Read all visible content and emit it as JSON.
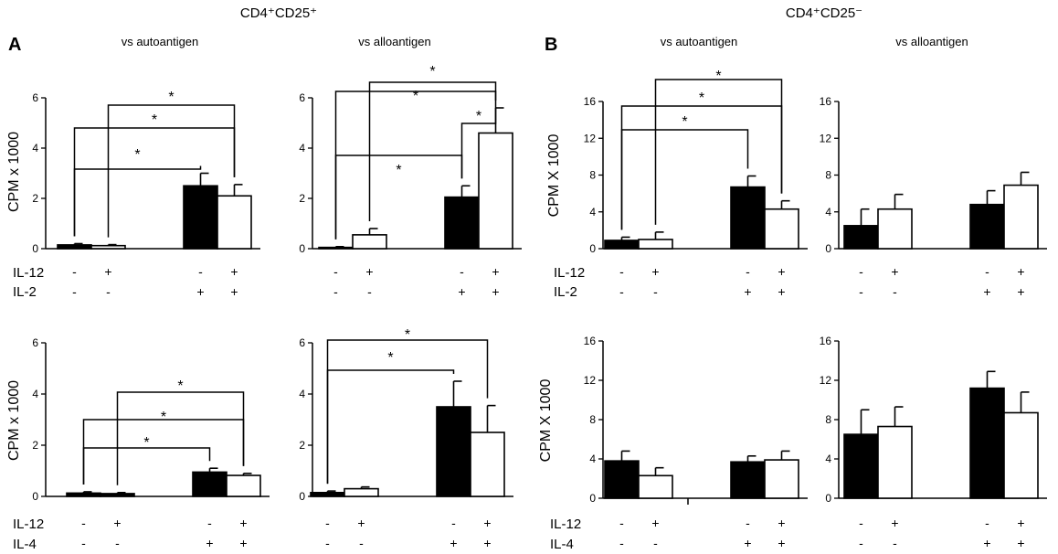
{
  "headers": {
    "left": "CD4⁺CD25⁺",
    "right": "CD4⁺CD25⁻"
  },
  "panel_letters": {
    "a": "A",
    "b": "B"
  },
  "colors": {
    "filled": "#000000",
    "open": "#ffffff",
    "axis": "#000000"
  },
  "chart_data": [
    {
      "id": "a-auto-il2",
      "type": "bar",
      "title": "vs autoantigen",
      "ylabel": "CPM x 1000",
      "ylim": [
        0,
        6
      ],
      "yticks": [
        0,
        2,
        4,
        6
      ],
      "row_labels": [
        "IL-12",
        "IL-2"
      ],
      "groups": [
        {
          "bars": [
            {
              "fill": "filled",
              "value": 0.15,
              "error": 0.05,
              "signs": [
                "-",
                "-"
              ]
            },
            {
              "fill": "open",
              "value": 0.12,
              "error": 0.04,
              "signs": [
                "+",
                "-"
              ]
            }
          ]
        },
        {
          "bars": [
            {
              "fill": "filled",
              "value": 2.5,
              "error": 0.5,
              "signs": [
                "-",
                "+"
              ]
            },
            {
              "fill": "open",
              "value": 2.1,
              "error": 0.45,
              "signs": [
                "+",
                "+"
              ]
            }
          ]
        }
      ],
      "significance": [
        {
          "from": [
            0,
            0
          ],
          "to": [
            1,
            0
          ],
          "label": "*"
        },
        {
          "from": [
            0,
            0
          ],
          "to": [
            1,
            1
          ],
          "label": "*"
        },
        {
          "from": [
            0,
            1
          ],
          "to": [
            1,
            1
          ],
          "label": "*"
        }
      ]
    },
    {
      "id": "a-allo-il2",
      "type": "bar",
      "title": "vs alloantigen",
      "ylabel": "",
      "ylim": [
        0,
        6
      ],
      "yticks": [
        0,
        2,
        4,
        6
      ],
      "row_labels": [],
      "groups": [
        {
          "bars": [
            {
              "fill": "filled",
              "value": 0.05,
              "error": 0.03,
              "signs": [
                "-",
                "-"
              ]
            },
            {
              "fill": "open",
              "value": 0.55,
              "error": 0.25,
              "signs": [
                "+",
                "-"
              ]
            }
          ]
        },
        {
          "bars": [
            {
              "fill": "filled",
              "value": 2.05,
              "error": 0.45,
              "signs": [
                "-",
                "+"
              ]
            },
            {
              "fill": "open",
              "value": 4.6,
              "error": 1.0,
              "signs": [
                "+",
                "+"
              ]
            }
          ]
        }
      ],
      "significance": [
        {
          "from": [
            0,
            0
          ],
          "to": [
            1,
            0
          ],
          "label": "*"
        },
        {
          "from": [
            1,
            0
          ],
          "to": [
            1,
            1
          ],
          "label": "*"
        },
        {
          "from": [
            0,
            0
          ],
          "to": [
            1,
            1
          ],
          "label": "*"
        },
        {
          "from": [
            0,
            1
          ],
          "to": [
            1,
            1
          ],
          "label": "*"
        }
      ]
    },
    {
      "id": "b-auto-il2",
      "type": "bar",
      "title": "vs autoantigen",
      "ylabel": "CPM X 1000",
      "ylim": [
        0,
        16
      ],
      "yticks": [
        0,
        4,
        8,
        12,
        16
      ],
      "row_labels": [
        "IL-12",
        "IL-2"
      ],
      "groups": [
        {
          "bars": [
            {
              "fill": "filled",
              "value": 0.9,
              "error": 0.35,
              "signs": [
                "-",
                "-"
              ]
            },
            {
              "fill": "open",
              "value": 1.0,
              "error": 0.8,
              "signs": [
                "+",
                "-"
              ]
            }
          ]
        },
        {
          "bars": [
            {
              "fill": "filled",
              "value": 6.7,
              "error": 1.2,
              "signs": [
                "-",
                "+"
              ]
            },
            {
              "fill": "open",
              "value": 4.3,
              "error": 0.9,
              "signs": [
                "+",
                "+"
              ]
            }
          ]
        }
      ],
      "significance": [
        {
          "from": [
            0,
            0
          ],
          "to": [
            1,
            0
          ],
          "label": "*"
        },
        {
          "from": [
            0,
            0
          ],
          "to": [
            1,
            1
          ],
          "label": "*"
        },
        {
          "from": [
            0,
            1
          ],
          "to": [
            1,
            1
          ],
          "label": "*"
        }
      ]
    },
    {
      "id": "b-allo-il2",
      "type": "bar",
      "title": "vs alloantigen",
      "ylabel": "",
      "ylim": [
        0,
        16
      ],
      "yticks": [
        0,
        4,
        8,
        12,
        16
      ],
      "row_labels": [],
      "groups": [
        {
          "bars": [
            {
              "fill": "filled",
              "value": 2.5,
              "error": 1.8,
              "signs": [
                "-",
                "-"
              ]
            },
            {
              "fill": "open",
              "value": 4.3,
              "error": 1.6,
              "signs": [
                "+",
                "-"
              ]
            }
          ]
        },
        {
          "bars": [
            {
              "fill": "filled",
              "value": 4.8,
              "error": 1.5,
              "signs": [
                "-",
                "+"
              ]
            },
            {
              "fill": "open",
              "value": 6.9,
              "error": 1.4,
              "signs": [
                "+",
                "+"
              ]
            }
          ]
        }
      ],
      "significance": []
    },
    {
      "id": "a-auto-il4",
      "type": "bar",
      "title": "",
      "ylabel": "CPM x 1000",
      "ylim": [
        0,
        6
      ],
      "yticks": [
        0,
        2,
        4,
        6
      ],
      "row_labels": [
        "IL-12",
        "IL-4"
      ],
      "groups": [
        {
          "bars": [
            {
              "fill": "filled",
              "value": 0.13,
              "error": 0.05,
              "signs": [
                "-",
                "-"
              ]
            },
            {
              "fill": "filled",
              "value": 0.11,
              "error": 0.04,
              "signs": [
                "+",
                "-"
              ]
            }
          ]
        },
        {
          "bars": [
            {
              "fill": "filled",
              "value": 0.95,
              "error": 0.15,
              "signs": [
                "-",
                "+"
              ]
            },
            {
              "fill": "open",
              "value": 0.82,
              "error": 0.08,
              "signs": [
                "+",
                "+"
              ]
            }
          ]
        }
      ],
      "significance": [
        {
          "from": [
            0,
            0
          ],
          "to": [
            1,
            0
          ],
          "label": "*"
        },
        {
          "from": [
            0,
            0
          ],
          "to": [
            1,
            1
          ],
          "label": "*"
        },
        {
          "from": [
            0,
            1
          ],
          "to": [
            1,
            1
          ],
          "label": "*"
        }
      ]
    },
    {
      "id": "a-allo-il4",
      "type": "bar",
      "title": "",
      "ylabel": "",
      "ylim": [
        0,
        6
      ],
      "yticks": [
        0,
        2,
        4,
        6
      ],
      "row_labels": [],
      "groups": [
        {
          "bars": [
            {
              "fill": "filled",
              "value": 0.15,
              "error": 0.06,
              "signs": [
                "-",
                "-"
              ]
            },
            {
              "fill": "open",
              "value": 0.3,
              "error": 0.07,
              "signs": [
                "+",
                "-"
              ]
            }
          ]
        },
        {
          "bars": [
            {
              "fill": "filled",
              "value": 3.5,
              "error": 1.0,
              "signs": [
                "-",
                "+"
              ]
            },
            {
              "fill": "open",
              "value": 2.5,
              "error": 1.05,
              "signs": [
                "+",
                "+"
              ]
            }
          ]
        }
      ],
      "significance": [
        {
          "from": [
            0,
            0
          ],
          "to": [
            1,
            0
          ],
          "label": "*"
        },
        {
          "from": [
            0,
            0
          ],
          "to": [
            1,
            1
          ],
          "label": "*"
        }
      ]
    },
    {
      "id": "b-auto-il4",
      "type": "bar",
      "title": "",
      "ylabel": "CPM X 1000",
      "ylim": [
        0,
        16
      ],
      "yticks": [
        0,
        4,
        8,
        12,
        16
      ],
      "row_labels": [
        "IL-12",
        "IL-4"
      ],
      "groups": [
        {
          "bars": [
            {
              "fill": "filled",
              "value": 3.8,
              "error": 1.0,
              "signs": [
                "-",
                "-"
              ]
            },
            {
              "fill": "open",
              "value": 2.3,
              "error": 0.8,
              "signs": [
                "+",
                "-"
              ]
            }
          ]
        },
        {
          "bars": [
            {
              "fill": "filled",
              "value": 3.7,
              "error": 0.6,
              "signs": [
                "-",
                "+"
              ]
            },
            {
              "fill": "open",
              "value": 3.9,
              "error": 0.9,
              "signs": [
                "+",
                "+"
              ]
            }
          ]
        }
      ],
      "significance": []
    },
    {
      "id": "b-allo-il4",
      "type": "bar",
      "title": "",
      "ylabel": "",
      "ylim": [
        0,
        16
      ],
      "yticks": [
        0,
        4,
        8,
        12,
        16
      ],
      "row_labels": [],
      "groups": [
        {
          "bars": [
            {
              "fill": "filled",
              "value": 6.5,
              "error": 2.5,
              "signs": [
                "-",
                "-"
              ]
            },
            {
              "fill": "open",
              "value": 7.3,
              "error": 2.0,
              "signs": [
                "+",
                "-"
              ]
            }
          ]
        },
        {
          "bars": [
            {
              "fill": "filled",
              "value": 11.2,
              "error": 1.7,
              "signs": [
                "-",
                "+"
              ]
            },
            {
              "fill": "open",
              "value": 8.7,
              "error": 2.1,
              "signs": [
                "+",
                "+"
              ]
            }
          ]
        }
      ],
      "significance": []
    }
  ]
}
